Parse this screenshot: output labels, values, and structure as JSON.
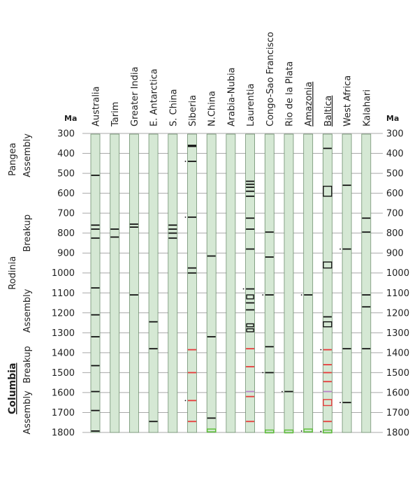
{
  "chart_data": {
    "type": "timeline",
    "y_unit": "Ma",
    "ylim": [
      300,
      1800
    ],
    "y_ticks": [
      300,
      400,
      500,
      600,
      700,
      800,
      900,
      1000,
      1100,
      1200,
      1300,
      1400,
      1500,
      1600,
      1700,
      1800
    ],
    "columns": [
      {
        "name": "Australia",
        "underline": false
      },
      {
        "name": "Tarim",
        "underline": false
      },
      {
        "name": "Greater India",
        "underline": false
      },
      {
        "name": "E. Antarctica",
        "underline": false
      },
      {
        "name": "S. China",
        "underline": false
      },
      {
        "name": "Siberia",
        "underline": false
      },
      {
        "name": "N.China",
        "underline": false
      },
      {
        "name": "Arabia-Nubia",
        "underline": false
      },
      {
        "name": "Laurentia",
        "underline": false
      },
      {
        "name": "Congo-Sao Francisco",
        "underline": false
      },
      {
        "name": "Rio de la Plata",
        "underline": false
      },
      {
        "name": "Amazonia",
        "underline": true
      },
      {
        "name": "Baltica",
        "underline": true
      },
      {
        "name": "West Africa",
        "underline": false
      },
      {
        "name": "Kalahari",
        "underline": false
      }
    ],
    "periods": [
      {
        "label": "Assembly",
        "top": 300,
        "bottom": 520
      },
      {
        "label": "Breakup",
        "top": 700,
        "bottom": 900
      },
      {
        "label": "Assembly",
        "top": 1060,
        "bottom": 1320
      },
      {
        "label": "Breakup",
        "top": 1360,
        "bottom": 1560
      },
      {
        "label": "Assembly",
        "top": 1600,
        "bottom": 1800
      }
    ],
    "supercontinents": [
      {
        "label": "Pangea",
        "top": 300,
        "bottom": 560,
        "bold": false
      },
      {
        "label": "Rodinia",
        "top": 700,
        "bottom": 1300,
        "bold": false
      },
      {
        "label": "Columbia",
        "top": 1360,
        "bottom": 1800,
        "bold": true
      }
    ],
    "events": [
      {
        "col": 0,
        "age": 510,
        "color": "black"
      },
      {
        "col": 0,
        "age": 760,
        "color": "black"
      },
      {
        "col": 0,
        "age": 780,
        "color": "black"
      },
      {
        "col": 0,
        "age": 825,
        "color": "black"
      },
      {
        "col": 0,
        "age": 1075,
        "color": "black"
      },
      {
        "col": 0,
        "age": 1210,
        "color": "black"
      },
      {
        "col": 0,
        "age": 1320,
        "color": "black"
      },
      {
        "col": 0,
        "age": 1465,
        "color": "black"
      },
      {
        "col": 0,
        "age": 1595,
        "color": "black"
      },
      {
        "col": 0,
        "age": 1690,
        "color": "black"
      },
      {
        "col": 0,
        "age": 1793,
        "color": "black"
      },
      {
        "col": 1,
        "age": 780,
        "color": "black"
      },
      {
        "col": 1,
        "age": 820,
        "color": "black"
      },
      {
        "col": 2,
        "age": 755,
        "color": "black"
      },
      {
        "col": 2,
        "age": 770,
        "color": "black"
      },
      {
        "col": 2,
        "age": 1110,
        "color": "black"
      },
      {
        "col": 3,
        "age": 1245,
        "color": "black"
      },
      {
        "col": 3,
        "age": 1380,
        "color": "black"
      },
      {
        "col": 3,
        "age": 1745,
        "color": "black"
      },
      {
        "col": 4,
        "age": 760,
        "color": "black"
      },
      {
        "col": 4,
        "age": 780,
        "color": "black"
      },
      {
        "col": 4,
        "age": 800,
        "color": "black"
      },
      {
        "col": 4,
        "age": 825,
        "color": "black"
      },
      {
        "col": 5,
        "age": 360,
        "color": "black"
      },
      {
        "col": 5,
        "age": 365,
        "color": "black"
      },
      {
        "col": 5,
        "age": 440,
        "color": "black"
      },
      {
        "col": 5,
        "age": 720,
        "color": "black"
      },
      {
        "col": 5,
        "age": 975,
        "color": "black"
      },
      {
        "col": 5,
        "age": 1000,
        "color": "black"
      },
      {
        "col": 5,
        "age": 1385,
        "color": "red"
      },
      {
        "col": 5,
        "age": 1500,
        "color": "red"
      },
      {
        "col": 5,
        "age": 1640,
        "color": "red"
      },
      {
        "col": 5,
        "age": 1745,
        "color": "red"
      },
      {
        "col": 6,
        "age": 915,
        "color": "black"
      },
      {
        "col": 6,
        "age": 1320,
        "color": "black"
      },
      {
        "col": 6,
        "age": 1728,
        "color": "black"
      },
      {
        "col": 8,
        "age": 540,
        "color": "black"
      },
      {
        "col": 8,
        "age": 555,
        "color": "black"
      },
      {
        "col": 8,
        "age": 570,
        "color": "black"
      },
      {
        "col": 8,
        "age": 590,
        "color": "black"
      },
      {
        "col": 8,
        "age": 615,
        "color": "black"
      },
      {
        "col": 8,
        "age": 725,
        "color": "black"
      },
      {
        "col": 8,
        "age": 780,
        "color": "black"
      },
      {
        "col": 8,
        "age": 880,
        "color": "black"
      },
      {
        "col": 8,
        "age": 1080,
        "color": "black"
      },
      {
        "col": 8,
        "age": 1150,
        "color": "black"
      },
      {
        "col": 8,
        "age": 1185,
        "color": "black"
      },
      {
        "col": 8,
        "age": 1380,
        "color": "red"
      },
      {
        "col": 8,
        "age": 1470,
        "color": "red"
      },
      {
        "col": 8,
        "age": 1595,
        "color": "purple"
      },
      {
        "col": 8,
        "age": 1620,
        "color": "red"
      },
      {
        "col": 8,
        "age": 1745,
        "color": "red"
      },
      {
        "col": 9,
        "age": 795,
        "color": "black"
      },
      {
        "col": 9,
        "age": 920,
        "color": "black"
      },
      {
        "col": 9,
        "age": 1110,
        "color": "black"
      },
      {
        "col": 9,
        "age": 1370,
        "color": "black"
      },
      {
        "col": 9,
        "age": 1500,
        "color": "black"
      },
      {
        "col": 10,
        "age": 1595,
        "color": "black"
      },
      {
        "col": 11,
        "age": 1110,
        "color": "black"
      },
      {
        "col": 12,
        "age": 375,
        "color": "black"
      },
      {
        "col": 12,
        "age": 1220,
        "color": "black"
      },
      {
        "col": 12,
        "age": 1385,
        "color": "red"
      },
      {
        "col": 12,
        "age": 1460,
        "color": "red"
      },
      {
        "col": 12,
        "age": 1500,
        "color": "red"
      },
      {
        "col": 12,
        "age": 1545,
        "color": "red"
      },
      {
        "col": 12,
        "age": 1595,
        "color": "purple"
      },
      {
        "col": 12,
        "age": 1745,
        "color": "red"
      },
      {
        "col": 13,
        "age": 560,
        "color": "black"
      },
      {
        "col": 13,
        "age": 880,
        "color": "black"
      },
      {
        "col": 13,
        "age": 1380,
        "color": "black"
      },
      {
        "col": 13,
        "age": 1650,
        "color": "black"
      },
      {
        "col": 14,
        "age": 725,
        "color": "black"
      },
      {
        "col": 14,
        "age": 795,
        "color": "black"
      },
      {
        "col": 14,
        "age": 1110,
        "color": "black"
      },
      {
        "col": 14,
        "age": 1170,
        "color": "black"
      },
      {
        "col": 14,
        "age": 1380,
        "color": "black"
      }
    ],
    "boxes": [
      {
        "col": 8,
        "top": 1110,
        "bottom": 1130,
        "color": "black"
      },
      {
        "col": 8,
        "top": 1255,
        "bottom": 1270,
        "color": "black"
      },
      {
        "col": 8,
        "top": 1280,
        "bottom": 1295,
        "color": "black"
      },
      {
        "col": 12,
        "top": 565,
        "bottom": 615,
        "color": "black"
      },
      {
        "col": 12,
        "top": 945,
        "bottom": 975,
        "color": "black"
      },
      {
        "col": 12,
        "top": 1245,
        "bottom": 1270,
        "color": "black"
      },
      {
        "col": 12,
        "top": 1635,
        "bottom": 1665,
        "color": "red"
      }
    ],
    "green_marks": [
      {
        "col": 6,
        "age": 1790
      },
      {
        "col": 9,
        "age": 1795
      },
      {
        "col": 10,
        "age": 1795
      },
      {
        "col": 11,
        "age": 1790
      },
      {
        "col": 12,
        "age": 1795
      }
    ],
    "side_ticks": [
      {
        "col": 5,
        "age": 440
      },
      {
        "col": 5,
        "age": 720
      },
      {
        "col": 5,
        "age": 1640
      },
      {
        "col": 8,
        "age": 1080
      },
      {
        "col": 9,
        "age": 1110
      },
      {
        "col": 9,
        "age": 1500
      },
      {
        "col": 10,
        "age": 1595
      },
      {
        "col": 11,
        "age": 1110
      },
      {
        "col": 11,
        "age": 1793
      },
      {
        "col": 12,
        "age": 1385
      },
      {
        "col": 12,
        "age": 1795
      },
      {
        "col": 13,
        "age": 880
      },
      {
        "col": 13,
        "age": 1650
      }
    ],
    "colors": {
      "bar_fill": "#d5e8d4",
      "bar_stroke": "#6f8f6f",
      "grid": "#a8a8a8",
      "event_black": "#111111",
      "event_red": "#e8393a",
      "event_purple": "#b97fc9",
      "event_green": "#5fbf3a"
    }
  }
}
